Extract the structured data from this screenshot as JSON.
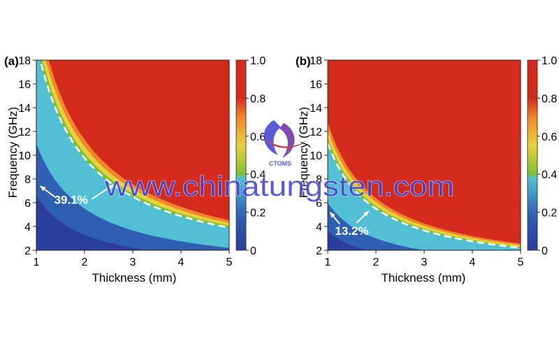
{
  "chart_data": [
    {
      "type": "heatmap",
      "panel_label": "(a)",
      "xlabel": "Thickness (mm)",
      "ylabel": "Frequency (GHz)",
      "xlim": [
        1,
        5
      ],
      "ylim": [
        2,
        18
      ],
      "x_ticks": [
        "1",
        "2",
        "3",
        "4",
        "5"
      ],
      "y_ticks": [
        "2",
        "4",
        "6",
        "8",
        "10",
        "12",
        "14",
        "16",
        "18"
      ],
      "colorbar": {
        "range": [
          0,
          1
        ],
        "ticks": [
          "0",
          "0.2",
          "0.4",
          "0.6",
          "0.8",
          "1.0"
        ]
      },
      "boundary_k": 19.5,
      "boundary_curve": [
        {
          "x": 1.08,
          "y": 18.0
        },
        {
          "x": 1.5,
          "y": 13.0
        },
        {
          "x": 2.0,
          "y": 9.75
        },
        {
          "x": 2.5,
          "y": 7.8
        },
        {
          "x": 3.0,
          "y": 6.5
        },
        {
          "x": 4.0,
          "y": 4.88
        },
        {
          "x": 5.0,
          "y": 3.9
        }
      ],
      "inner_k": 11.0,
      "annotation": {
        "text": "39.1%",
        "x": 1.72,
        "y": 5.9
      },
      "arrows": [
        {
          "from": {
            "x": 1.38,
            "y": 6.5
          },
          "to": {
            "x": 1.08,
            "y": 7.4
          }
        },
        {
          "from": {
            "x": 2.15,
            "y": 6.3
          },
          "to": {
            "x": 2.6,
            "y": 7.5
          }
        }
      ]
    },
    {
      "type": "heatmap",
      "panel_label": "(b)",
      "xlabel": "Thickness (mm)",
      "ylabel": "Frequency (GHz)",
      "xlim": [
        1,
        5
      ],
      "ylim": [
        2,
        18
      ],
      "x_ticks": [
        "1",
        "2",
        "3",
        "4",
        "5"
      ],
      "y_ticks": [
        "2",
        "4",
        "6",
        "8",
        "10",
        "12",
        "14",
        "16",
        "18"
      ],
      "colorbar": {
        "range": [
          0,
          1
        ],
        "ticks": [
          "0",
          "0.2",
          "0.4",
          "0.6",
          "0.8",
          "1.0"
        ]
      },
      "boundary_k": 11.0,
      "boundary_curve": [
        {
          "x": 1.0,
          "y": 11.0
        },
        {
          "x": 1.5,
          "y": 7.33
        },
        {
          "x": 2.0,
          "y": 5.5
        },
        {
          "x": 3.0,
          "y": 3.67
        },
        {
          "x": 4.0,
          "y": 2.75
        },
        {
          "x": 5.0,
          "y": 2.2
        }
      ],
      "inner_k": 6.0,
      "annotation": {
        "text": "13.2%",
        "x": 1.5,
        "y": 3.3
      },
      "arrows": [
        {
          "from": {
            "x": 1.25,
            "y": 4.2
          },
          "to": {
            "x": 1.05,
            "y": 5.2
          }
        },
        {
          "from": {
            "x": 1.6,
            "y": 4.3
          },
          "to": {
            "x": 1.85,
            "y": 5.3
          }
        }
      ]
    }
  ],
  "watermark": {
    "logo_text": "CTOMS",
    "site_text": "www.chinatungsten.com"
  },
  "colors": {
    "red": "#d42b1e",
    "orange": "#f2862e",
    "yellow": "#e8d13a",
    "green": "#7cc135",
    "cyan": "#52bfd5",
    "blue": "#2f5fb3",
    "navy": "#2b3e9b",
    "watermark": "#3f3fd0"
  }
}
